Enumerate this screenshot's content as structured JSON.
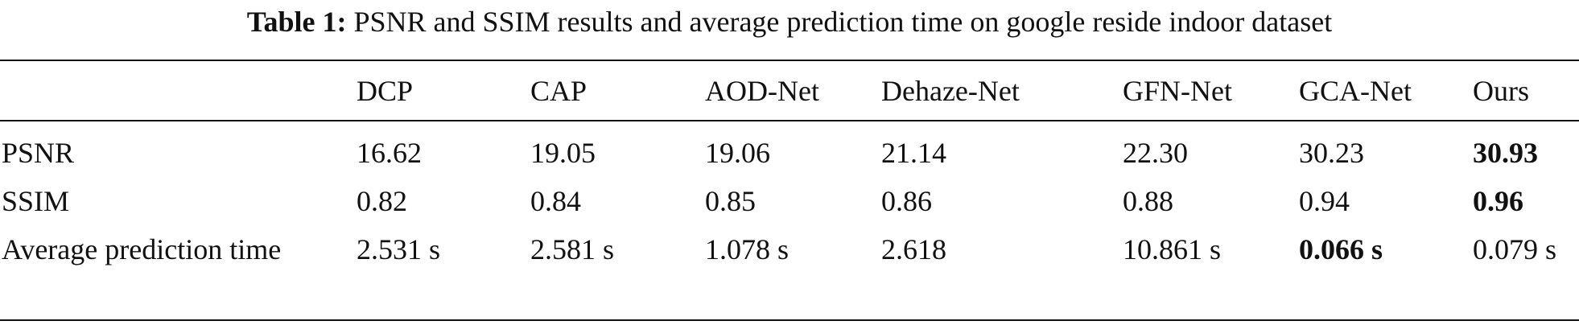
{
  "caption": {
    "label": "Table 1:",
    "text": "PSNR and SSIM results and average prediction time on google reside indoor dataset"
  },
  "table": {
    "header": [
      "DCP",
      "CAP",
      "AOD-Net",
      "Dehaze-Net",
      "GFN-Net",
      "GCA-Net",
      "Ours"
    ],
    "rows": [
      {
        "label": "PSNR",
        "cells": [
          "16.62",
          "19.05",
          "19.06",
          "21.14",
          "22.30",
          "30.23",
          "30.93"
        ]
      },
      {
        "label": "SSIM",
        "cells": [
          "0.82",
          "0.84",
          "0.85",
          "0.86",
          "0.88",
          "0.94",
          "0.96"
        ]
      },
      {
        "label": "Average prediction time",
        "cells": [
          "2.531 s",
          "2.581 s",
          "1.078 s",
          "2.618",
          "10.861 s",
          "0.066 s",
          "0.079 s"
        ]
      }
    ]
  }
}
